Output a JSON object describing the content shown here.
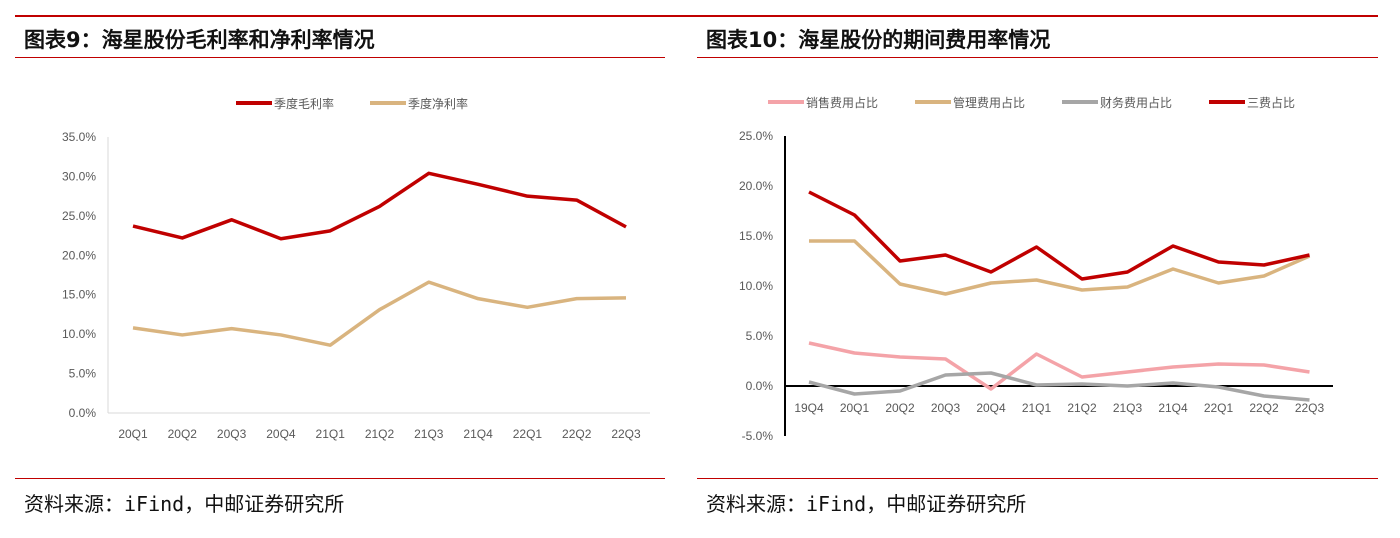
{
  "left": {
    "title": "图表9：海星股份毛利率和净利率情况",
    "source": "资料来源：iFind，中邮证券研究所"
  },
  "right": {
    "title": "图表10：海星股份的期间费用率情况",
    "source": "资料来源：iFind，中邮证券研究所"
  },
  "chart_data": [
    {
      "type": "line",
      "categories": [
        "20Q1",
        "20Q2",
        "20Q3",
        "20Q4",
        "21Q1",
        "21Q2",
        "21Q3",
        "21Q4",
        "22Q1",
        "22Q2",
        "22Q3"
      ],
      "ylim": [
        0,
        35
      ],
      "yticks": [
        "0.0%",
        "5.0%",
        "10.0%",
        "15.0%",
        "20.0%",
        "25.0%",
        "30.0%",
        "35.0%"
      ],
      "legend": "top",
      "grid": false,
      "series": [
        {
          "name": "季度毛利率",
          "color": "#c00000",
          "values": [
            23.7,
            22.2,
            24.5,
            22.1,
            23.1,
            26.2,
            30.4,
            29.0,
            27.5,
            27.0,
            23.6
          ]
        },
        {
          "name": "季度净利率",
          "color": "#d9b47f",
          "values": [
            10.8,
            9.9,
            10.7,
            9.9,
            8.6,
            13.1,
            16.6,
            14.5,
            13.4,
            14.5,
            14.6
          ]
        }
      ]
    },
    {
      "type": "line",
      "categories": [
        "19Q4",
        "20Q1",
        "20Q2",
        "20Q3",
        "20Q4",
        "21Q1",
        "21Q2",
        "21Q3",
        "21Q4",
        "22Q1",
        "22Q2",
        "22Q3"
      ],
      "ylim": [
        -5,
        25
      ],
      "yticks": [
        "-5.0%",
        "0.0%",
        "5.0%",
        "10.0%",
        "15.0%",
        "20.0%",
        "25.0%"
      ],
      "legend": "top",
      "grid": false,
      "series": [
        {
          "name": "销售费用占比",
          "color": "#f4a3a8",
          "values": [
            4.3,
            3.3,
            2.9,
            2.7,
            -0.3,
            3.2,
            0.9,
            1.4,
            1.9,
            2.2,
            2.1,
            1.4
          ]
        },
        {
          "name": "管理费用占比",
          "color": "#d9b47f",
          "values": [
            14.5,
            14.5,
            10.2,
            9.2,
            10.3,
            10.6,
            9.6,
            9.9,
            11.7,
            10.3,
            11.0,
            13.0
          ]
        },
        {
          "name": "财务费用占比",
          "color": "#a6a6a6",
          "values": [
            0.4,
            -0.8,
            -0.5,
            1.1,
            1.3,
            0.1,
            0.2,
            0.0,
            0.3,
            -0.1,
            -1.0,
            -1.4
          ]
        },
        {
          "name": "三费占比",
          "color": "#c00000",
          "values": [
            19.4,
            17.1,
            12.5,
            13.1,
            11.4,
            13.9,
            10.7,
            11.4,
            14.0,
            12.4,
            12.1,
            13.1
          ]
        }
      ]
    }
  ]
}
